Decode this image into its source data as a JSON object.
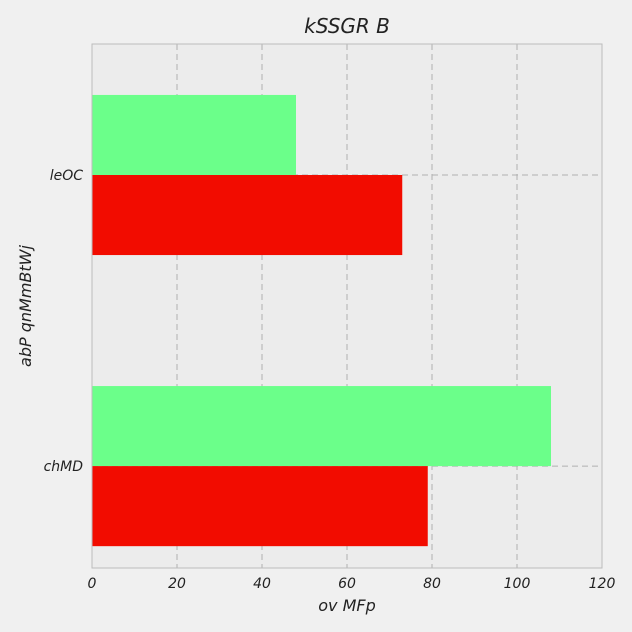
{
  "chart_data": {
    "type": "bar",
    "orientation": "horizontal",
    "title": "kSSGR B",
    "xlabel": "ov MFp",
    "ylabel": "abP qnMmBtWj",
    "categories": [
      "leOC",
      "chMD"
    ],
    "series": [
      {
        "values": [
          48,
          108
        ],
        "color": "#6bff8a"
      },
      {
        "values": [
          73,
          79
        ],
        "color": "#f20c00"
      }
    ],
    "xlim": [
      0,
      120
    ],
    "xticks": [
      "0",
      "20",
      "40",
      "60",
      "80",
      "100",
      "120"
    ],
    "grid": true,
    "legend": "none",
    "background": "#ececec"
  }
}
